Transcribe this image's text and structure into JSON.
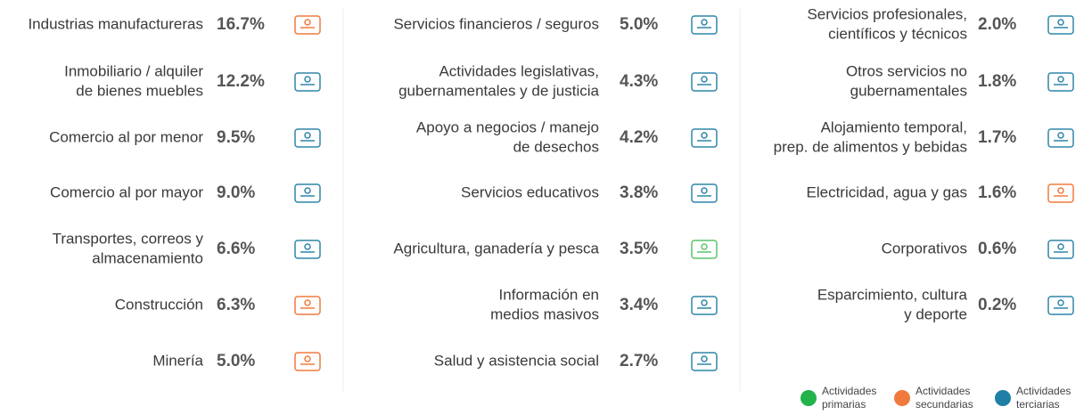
{
  "columns": [
    {
      "items": [
        {
          "label": [
            "Industrias manufactureras"
          ],
          "value": "16.7%",
          "color": "#f07a3e"
        },
        {
          "label": [
            "Inmobiliario / alquiler",
            "de bienes muebles"
          ],
          "value": "12.2%",
          "color": "#2f86a8"
        },
        {
          "label": [
            "Comercio al por menor"
          ],
          "value": "9.5%",
          "color": "#2f86a8"
        },
        {
          "label": [
            "Comercio al por mayor"
          ],
          "value": "9.0%",
          "color": "#2f86a8"
        },
        {
          "label": [
            "Transportes, correos y",
            "almacenamiento"
          ],
          "value": "6.6%",
          "color": "#2f86a8"
        },
        {
          "label": [
            "Construcción"
          ],
          "value": "6.3%",
          "color": "#f07a3e"
        },
        {
          "label": [
            "Minería"
          ],
          "value": "5.0%",
          "color": "#f07a3e"
        }
      ]
    },
    {
      "items": [
        {
          "label": [
            "Servicios financieros / seguros"
          ],
          "value": "5.0%",
          "color": "#2f86a8"
        },
        {
          "label": [
            "Actividades legislativas,",
            "gubernamentales y de justicia"
          ],
          "value": "4.3%",
          "color": "#2f86a8"
        },
        {
          "label": [
            "Apoyo a negocios / manejo",
            "de desechos"
          ],
          "value": "4.2%",
          "color": "#2f86a8"
        },
        {
          "label": [
            "Servicios educativos"
          ],
          "value": "3.8%",
          "color": "#2f86a8"
        },
        {
          "label": [
            "Agricultura, ganadería y pesca"
          ],
          "value": "3.5%",
          "color": "#5cc46a"
        },
        {
          "label": [
            "Información en",
            "medios masivos"
          ],
          "value": "3.4%",
          "color": "#2f86a8"
        },
        {
          "label": [
            "Salud y asistencia social"
          ],
          "value": "2.7%",
          "color": "#2f86a8"
        }
      ]
    },
    {
      "items": [
        {
          "label": [
            "Servicios profesionales,",
            "científicos y técnicos"
          ],
          "value": "2.0%",
          "color": "#2f86a8"
        },
        {
          "label": [
            "Otros servicios no",
            "gubernamentales"
          ],
          "value": "1.8%",
          "color": "#2f86a8"
        },
        {
          "label": [
            "Alojamiento temporal,",
            "prep. de alimentos y bebidas"
          ],
          "value": "1.7%",
          "color": "#2f86a8"
        },
        {
          "label": [
            "Electricidad, agua y gas"
          ],
          "value": "1.6%",
          "color": "#f07a3e"
        },
        {
          "label": [
            "Corporativos"
          ],
          "value": "0.6%",
          "color": "#2f86a8"
        },
        {
          "label": [
            "Esparcimiento, cultura",
            "y deporte"
          ],
          "value": "0.2%",
          "color": "#2f86a8"
        }
      ]
    }
  ],
  "legend": [
    {
      "label": [
        "Actividades",
        "primarias"
      ],
      "color": "#22b34a"
    },
    {
      "label": [
        "Actividades",
        "secundarias"
      ],
      "color": "#f07a3e"
    },
    {
      "label": [
        "Actividades",
        "terciarias"
      ],
      "color": "#1f7fa6"
    }
  ]
}
